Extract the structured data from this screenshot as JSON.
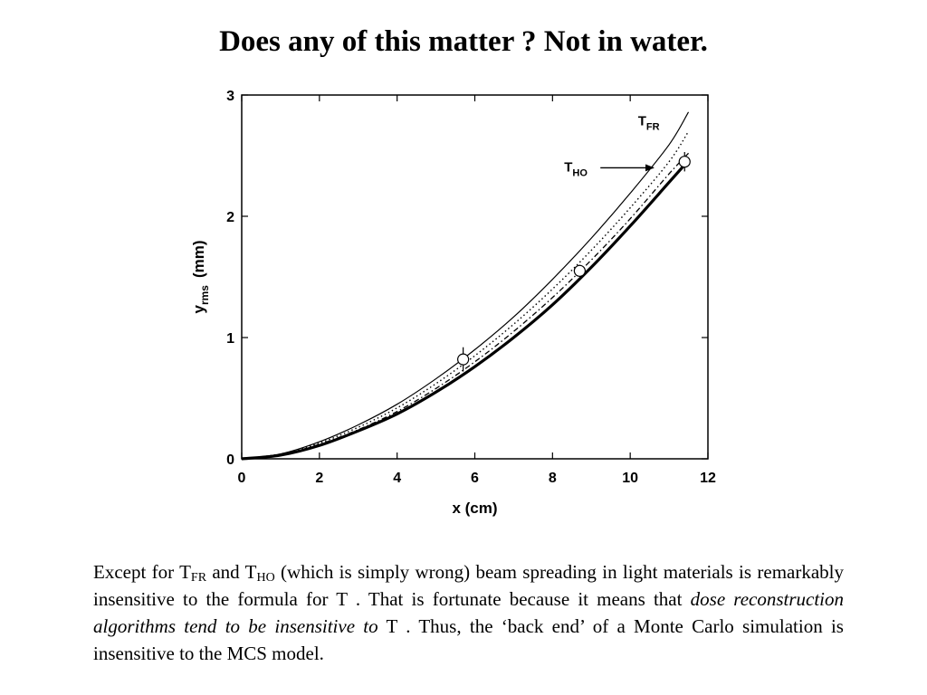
{
  "slide": {
    "title": "Does any of  this matter ? Not in water."
  },
  "chart_data": {
    "type": "line",
    "xlabel": "x  (cm)",
    "ylabel_main": "y",
    "ylabel_sub": "rms",
    "ylabel_unit": "(mm)",
    "xlim": [
      0,
      12
    ],
    "ylim": [
      0,
      3
    ],
    "x_ticks": [
      "0",
      "2",
      "4",
      "6",
      "8",
      "10",
      "12"
    ],
    "y_ticks": [
      "0",
      "1",
      "2",
      "3"
    ],
    "grid": false,
    "series": [
      {
        "name": "T_FR",
        "style": "solid-thin",
        "x": [
          0,
          1,
          2,
          3,
          4,
          5,
          6,
          7,
          8,
          9,
          10,
          11,
          11.5
        ],
        "y": [
          0,
          0.04,
          0.14,
          0.28,
          0.45,
          0.66,
          0.9,
          1.17,
          1.48,
          1.82,
          2.19,
          2.59,
          2.86
        ]
      },
      {
        "name": "T_HO",
        "style": "dotted",
        "x": [
          0,
          1,
          2,
          3,
          4,
          5,
          6,
          7,
          8,
          9,
          10,
          11,
          11.5
        ],
        "y": [
          0,
          0.04,
          0.13,
          0.26,
          0.42,
          0.62,
          0.85,
          1.11,
          1.4,
          1.72,
          2.07,
          2.45,
          2.7
        ]
      },
      {
        "name": "",
        "style": "dash-dot",
        "x": [
          0,
          1,
          2,
          3,
          4,
          5,
          6,
          7,
          8,
          9,
          10,
          11,
          11.5
        ],
        "y": [
          0,
          0.035,
          0.12,
          0.24,
          0.39,
          0.58,
          0.8,
          1.05,
          1.33,
          1.64,
          1.98,
          2.35,
          2.52
        ]
      },
      {
        "name": "",
        "style": "solid-thick",
        "x": [
          0,
          1,
          2,
          3,
          4,
          5,
          6,
          7,
          8,
          9,
          10,
          11,
          11.5
        ],
        "y": [
          0,
          0.03,
          0.11,
          0.23,
          0.37,
          0.55,
          0.76,
          1.0,
          1.27,
          1.58,
          1.92,
          2.28,
          2.46
        ]
      }
    ],
    "measurements": [
      {
        "x": 5.7,
        "y": 0.82,
        "err": 0.1
      },
      {
        "x": 8.7,
        "y": 1.55,
        "err": 0.05
      },
      {
        "x": 11.4,
        "y": 2.45,
        "err": 0.08
      }
    ],
    "annotations": [
      {
        "label_main": "T",
        "label_sub": "FR",
        "x": 10.2,
        "y": 2.75
      },
      {
        "label_main": "T",
        "label_sub": "HO",
        "x": 8.3,
        "y": 2.37,
        "arrow_to": [
          10.6,
          2.37
        ]
      }
    ]
  },
  "caption": {
    "p1": "Except for T",
    "s1": "FR",
    "p2": " and T",
    "s2": "HO",
    "p3": " (which is simply wrong) beam spreading in light materials is remarkably insensitive to the formula for T . That is fortunate because it means that ",
    "italic": "dose reconstruction algorithms tend to be insensitive to",
    "p4": " T . Thus, the ‘back end’ of a Monte Carlo simulation is insensitive to the MCS model."
  }
}
